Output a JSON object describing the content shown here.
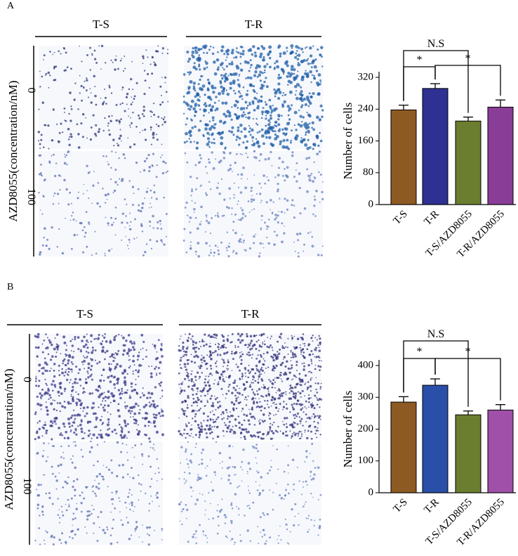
{
  "panels": [
    {
      "label": "A",
      "groups": [
        "T-S",
        "T-R"
      ],
      "rows": [
        "0",
        "100"
      ],
      "axis_label": "AZD8055(concentration/nM)"
    },
    {
      "label": "B",
      "groups": [
        "T-S",
        "T-R"
      ],
      "rows": [
        "0",
        "100"
      ],
      "axis_label": "AZD8055(concentration/nM)"
    }
  ],
  "chart_data": [
    {
      "type": "bar",
      "y_label": "Number of cells",
      "categories": [
        "T-S",
        "T-R",
        "T-S/AZD8055",
        "T-R/AZD8055"
      ],
      "values": [
        238,
        292,
        210,
        245
      ],
      "errors": [
        12,
        12,
        10,
        18
      ],
      "colors": [
        "#8e5a23",
        "#2e3192",
        "#6b7d2e",
        "#8a3d96"
      ],
      "ylim": [
        0,
        320
      ],
      "yticks": [
        0,
        80,
        160,
        240,
        320
      ],
      "annotations": [
        "N.S",
        "*",
        "*"
      ]
    },
    {
      "type": "bar",
      "y_label": "Number of cells",
      "categories": [
        "T-S",
        "T-R",
        "T-S/AZD8055",
        "T-R/AZD8055"
      ],
      "values": [
        285,
        338,
        245,
        260
      ],
      "errors": [
        17,
        20,
        12,
        17
      ],
      "colors": [
        "#8e5a23",
        "#2a4fa8",
        "#6b7d2e",
        "#a050a8"
      ],
      "ylim": [
        0,
        400
      ],
      "yticks": [
        0,
        100,
        200,
        300,
        400
      ],
      "annotations": [
        "N.S",
        "*",
        "*"
      ]
    }
  ]
}
